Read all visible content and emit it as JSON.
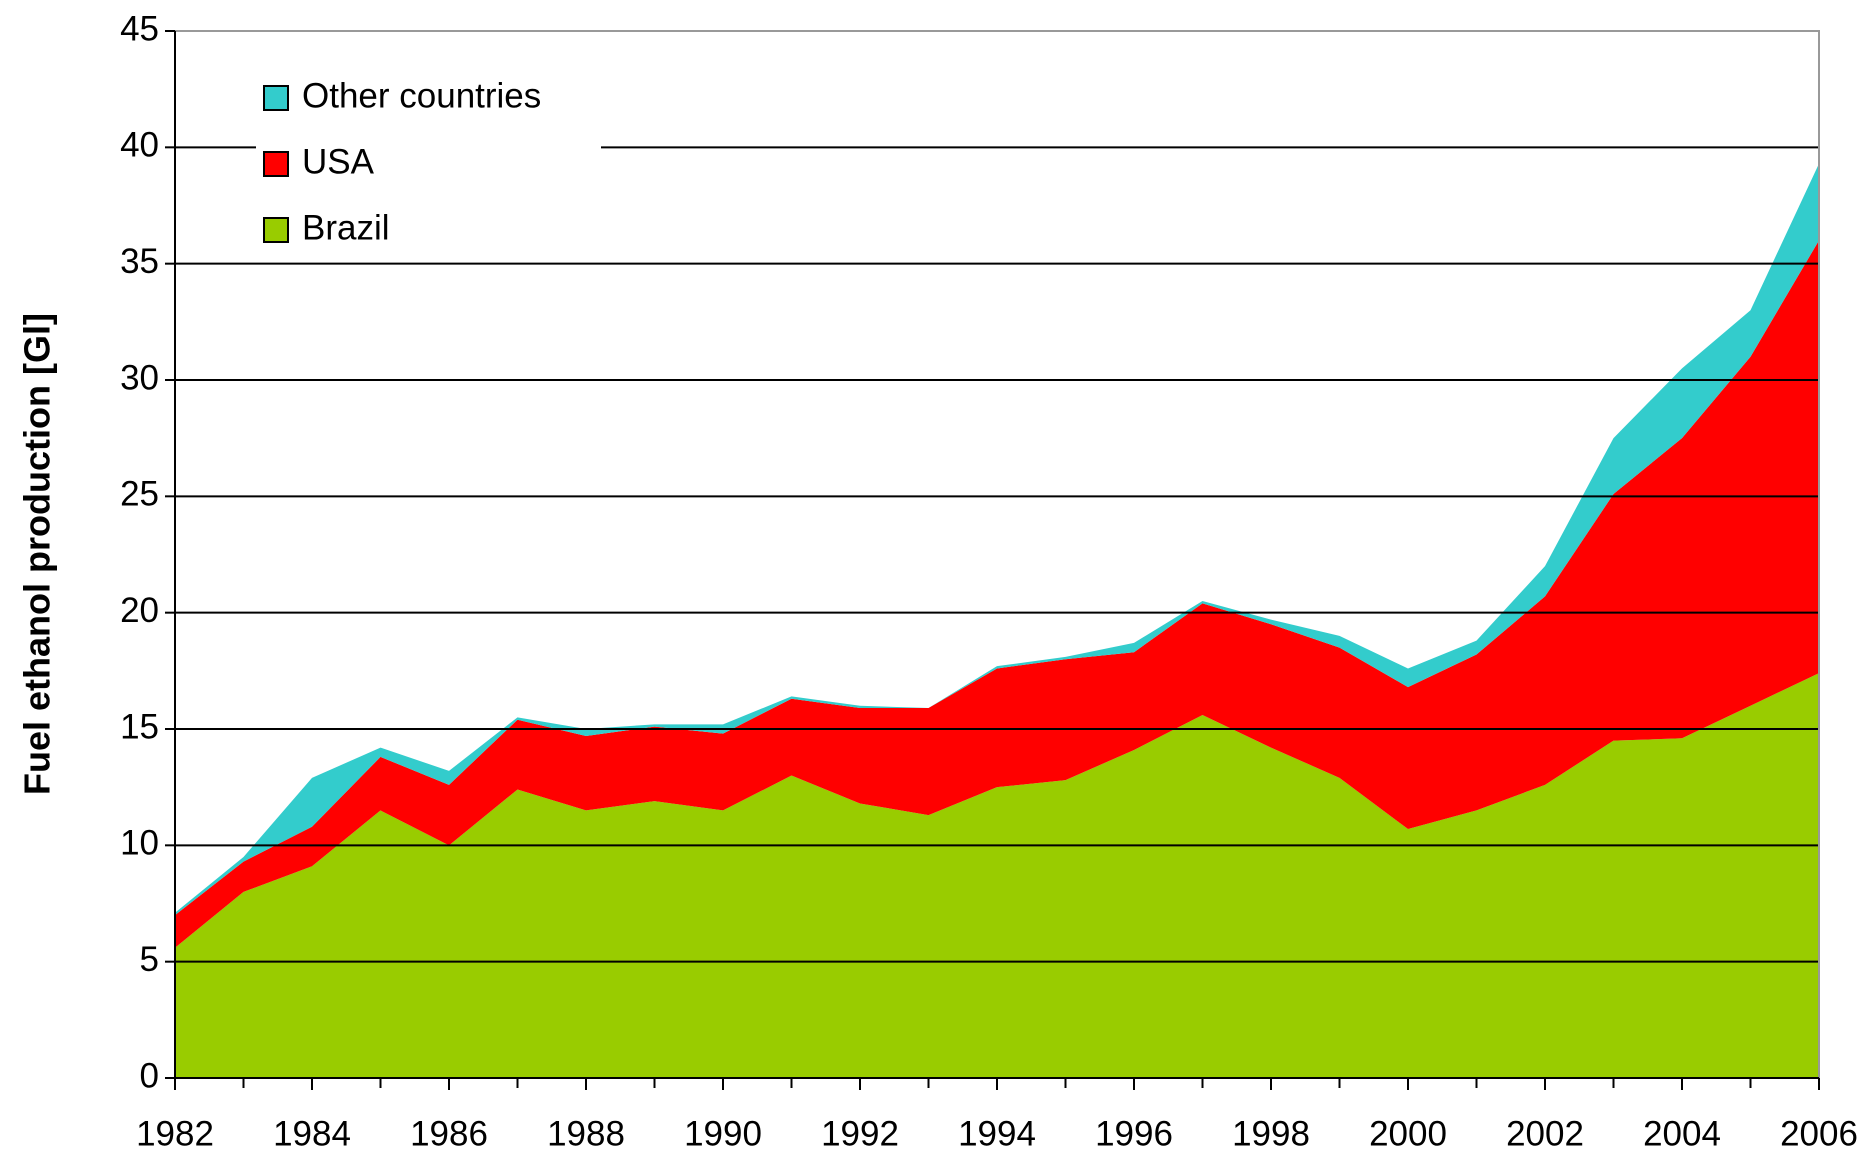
{
  "chart_data": {
    "type": "area",
    "y_label": "Fuel ethanol production [Gl]",
    "x": [
      1982,
      1983,
      1984,
      1985,
      1986,
      1987,
      1988,
      1989,
      1990,
      1991,
      1992,
      1993,
      1994,
      1995,
      1996,
      1997,
      1998,
      1999,
      2000,
      2001,
      2002,
      2003,
      2004,
      2005,
      2006
    ],
    "series": [
      {
        "name": "Brazil",
        "color": "#99cc00",
        "values": [
          5.6,
          8.0,
          9.1,
          11.5,
          10.0,
          12.4,
          11.5,
          11.9,
          11.5,
          13.0,
          11.8,
          11.3,
          12.5,
          12.8,
          14.1,
          15.6,
          14.2,
          12.9,
          10.7,
          11.5,
          12.6,
          14.5,
          14.6,
          16.0,
          17.4
        ]
      },
      {
        "name": "USA",
        "color": "#ff0000",
        "values": [
          1.4,
          1.3,
          1.7,
          2.3,
          2.6,
          3.0,
          3.2,
          3.2,
          3.3,
          3.3,
          4.1,
          4.6,
          5.1,
          5.2,
          4.2,
          4.8,
          5.3,
          5.6,
          6.1,
          6.7,
          8.1,
          10.6,
          12.9,
          15.0,
          18.6
        ]
      },
      {
        "name": "Other countries",
        "color": "#33cccc",
        "values": [
          0.1,
          0.2,
          2.1,
          0.4,
          0.6,
          0.1,
          0.3,
          0.1,
          0.4,
          0.1,
          0.1,
          0,
          0.1,
          0.1,
          0.4,
          0.1,
          0.2,
          0.5,
          0.8,
          0.6,
          1.3,
          2.4,
          3.0,
          2.0,
          3.3
        ]
      }
    ],
    "xlim": [
      1982,
      2006
    ],
    "xticks": [
      1982,
      1984,
      1986,
      1988,
      1990,
      1992,
      1994,
      1996,
      1998,
      2000,
      2002,
      2004,
      2006
    ],
    "ylim": [
      0,
      45
    ],
    "yticks": [
      0,
      5,
      10,
      15,
      20,
      25,
      30,
      35,
      40,
      45
    ],
    "grid": true,
    "legend": "upper left"
  }
}
